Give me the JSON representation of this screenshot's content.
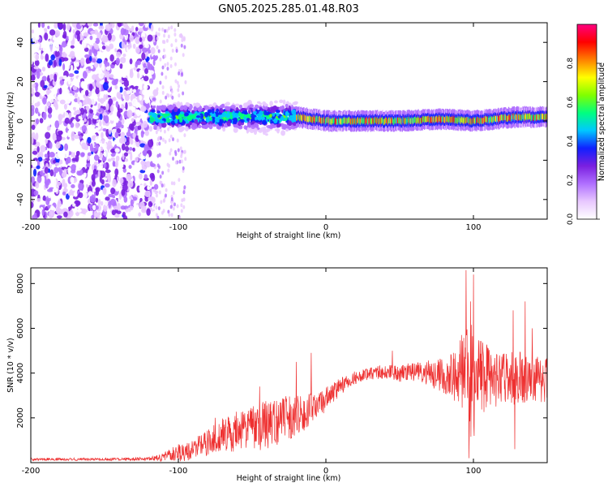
{
  "title": "GN05.2025.285.01.48.R03",
  "chart_data": [
    {
      "type": "heatmap",
      "title": "GN05.2025.285.01.48.R03",
      "xlabel": "Height of straight line (km)",
      "ylabel": "Frequency (Hz)",
      "xlim": [
        -200,
        150
      ],
      "ylim": [
        -50,
        50
      ],
      "xticks": [
        -200,
        -100,
        0,
        100
      ],
      "yticks": [
        -40,
        -20,
        0,
        20,
        40
      ],
      "colorbar": {
        "label": "Normalized spectral amplitude",
        "range": [
          0,
          1
        ],
        "ticks": [
          "0.0",
          "0.2",
          "0.4",
          "0.6",
          "0.8"
        ],
        "colormap": [
          "#ffffff",
          "#e8c8ff",
          "#b070ff",
          "#7a20e0",
          "#1020ff",
          "#00c8ff",
          "#00ff80",
          "#80ff00",
          "#ffff00",
          "#ff8000",
          "#ff0000",
          "#ff0080"
        ]
      },
      "regions": [
        {
          "x_range": [
            -200,
            -115
          ],
          "description": "broadband noise",
          "freq_range": [
            -50,
            50
          ],
          "amplitude": 0.12
        },
        {
          "x_range": [
            -115,
            -95
          ],
          "description": "scattered faint noise",
          "freq_range": [
            -50,
            50
          ],
          "amplitude": 0.05
        },
        {
          "x_range": [
            -120,
            -20
          ],
          "description": "signal band widening",
          "freq_range": [
            -15,
            10
          ],
          "amplitude": 0.4
        },
        {
          "x_range": [
            -20,
            150
          ],
          "description": "narrow signal band",
          "freq_center": [
            [
              -20,
              2
            ],
            [
              0,
              0
            ],
            [
              50,
              0
            ],
            [
              80,
              1
            ],
            [
              100,
              0
            ],
            [
              130,
              2
            ],
            [
              150,
              2
            ]
          ],
          "amplitude": 0.85
        }
      ]
    },
    {
      "type": "line",
      "title": "",
      "xlabel": "Height of straight line (km)",
      "ylabel": "SNR (10 * v/v)",
      "xlim": [
        -200,
        150
      ],
      "ylim": [
        0,
        8700
      ],
      "xticks": [
        -200,
        -100,
        0,
        100
      ],
      "yticks": [
        2000,
        4000,
        6000,
        8000
      ],
      "color": "#ee3030",
      "series": [
        {
          "name": "SNR",
          "x": [
            -200,
            -150,
            -120,
            -110,
            -100,
            -90,
            -80,
            -70,
            -60,
            -50,
            -40,
            -30,
            -20,
            -15,
            -10,
            -5,
            0,
            10,
            20,
            30,
            40,
            50,
            60,
            70,
            80,
            90,
            95,
            100,
            105,
            110,
            120,
            130,
            140,
            150
          ],
          "mean": [
            150,
            150,
            160,
            250,
            450,
            600,
            900,
            1200,
            1400,
            1500,
            1700,
            1900,
            2100,
            2200,
            2400,
            2600,
            2800,
            3400,
            3800,
            4000,
            4050,
            4000,
            4050,
            4000,
            3900,
            3950,
            3800,
            3700,
            3900,
            3800,
            3700,
            3800,
            3700,
            3700
          ],
          "amplitude": [
            60,
            60,
            80,
            200,
            400,
            500,
            600,
            800,
            900,
            1000,
            1100,
            1100,
            900,
            800,
            700,
            700,
            600,
            400,
            300,
            300,
            300,
            400,
            400,
            600,
            800,
            1400,
            2500,
            2800,
            1800,
            1400,
            1200,
            1200,
            1100,
            1000
          ],
          "peaks": [
            [
              -10,
              4900
            ],
            [
              -20,
              4500
            ],
            [
              -45,
              3400
            ],
            [
              -75,
              2000
            ],
            [
              45,
              5000
            ],
            [
              95,
              8600
            ],
            [
              98,
              7200
            ],
            [
              100,
              8400
            ],
            [
              127,
              6800
            ],
            [
              135,
              7200
            ],
            [
              140,
              6000
            ],
            [
              128,
              600
            ],
            [
              97,
              200
            ]
          ]
        }
      ]
    }
  ]
}
